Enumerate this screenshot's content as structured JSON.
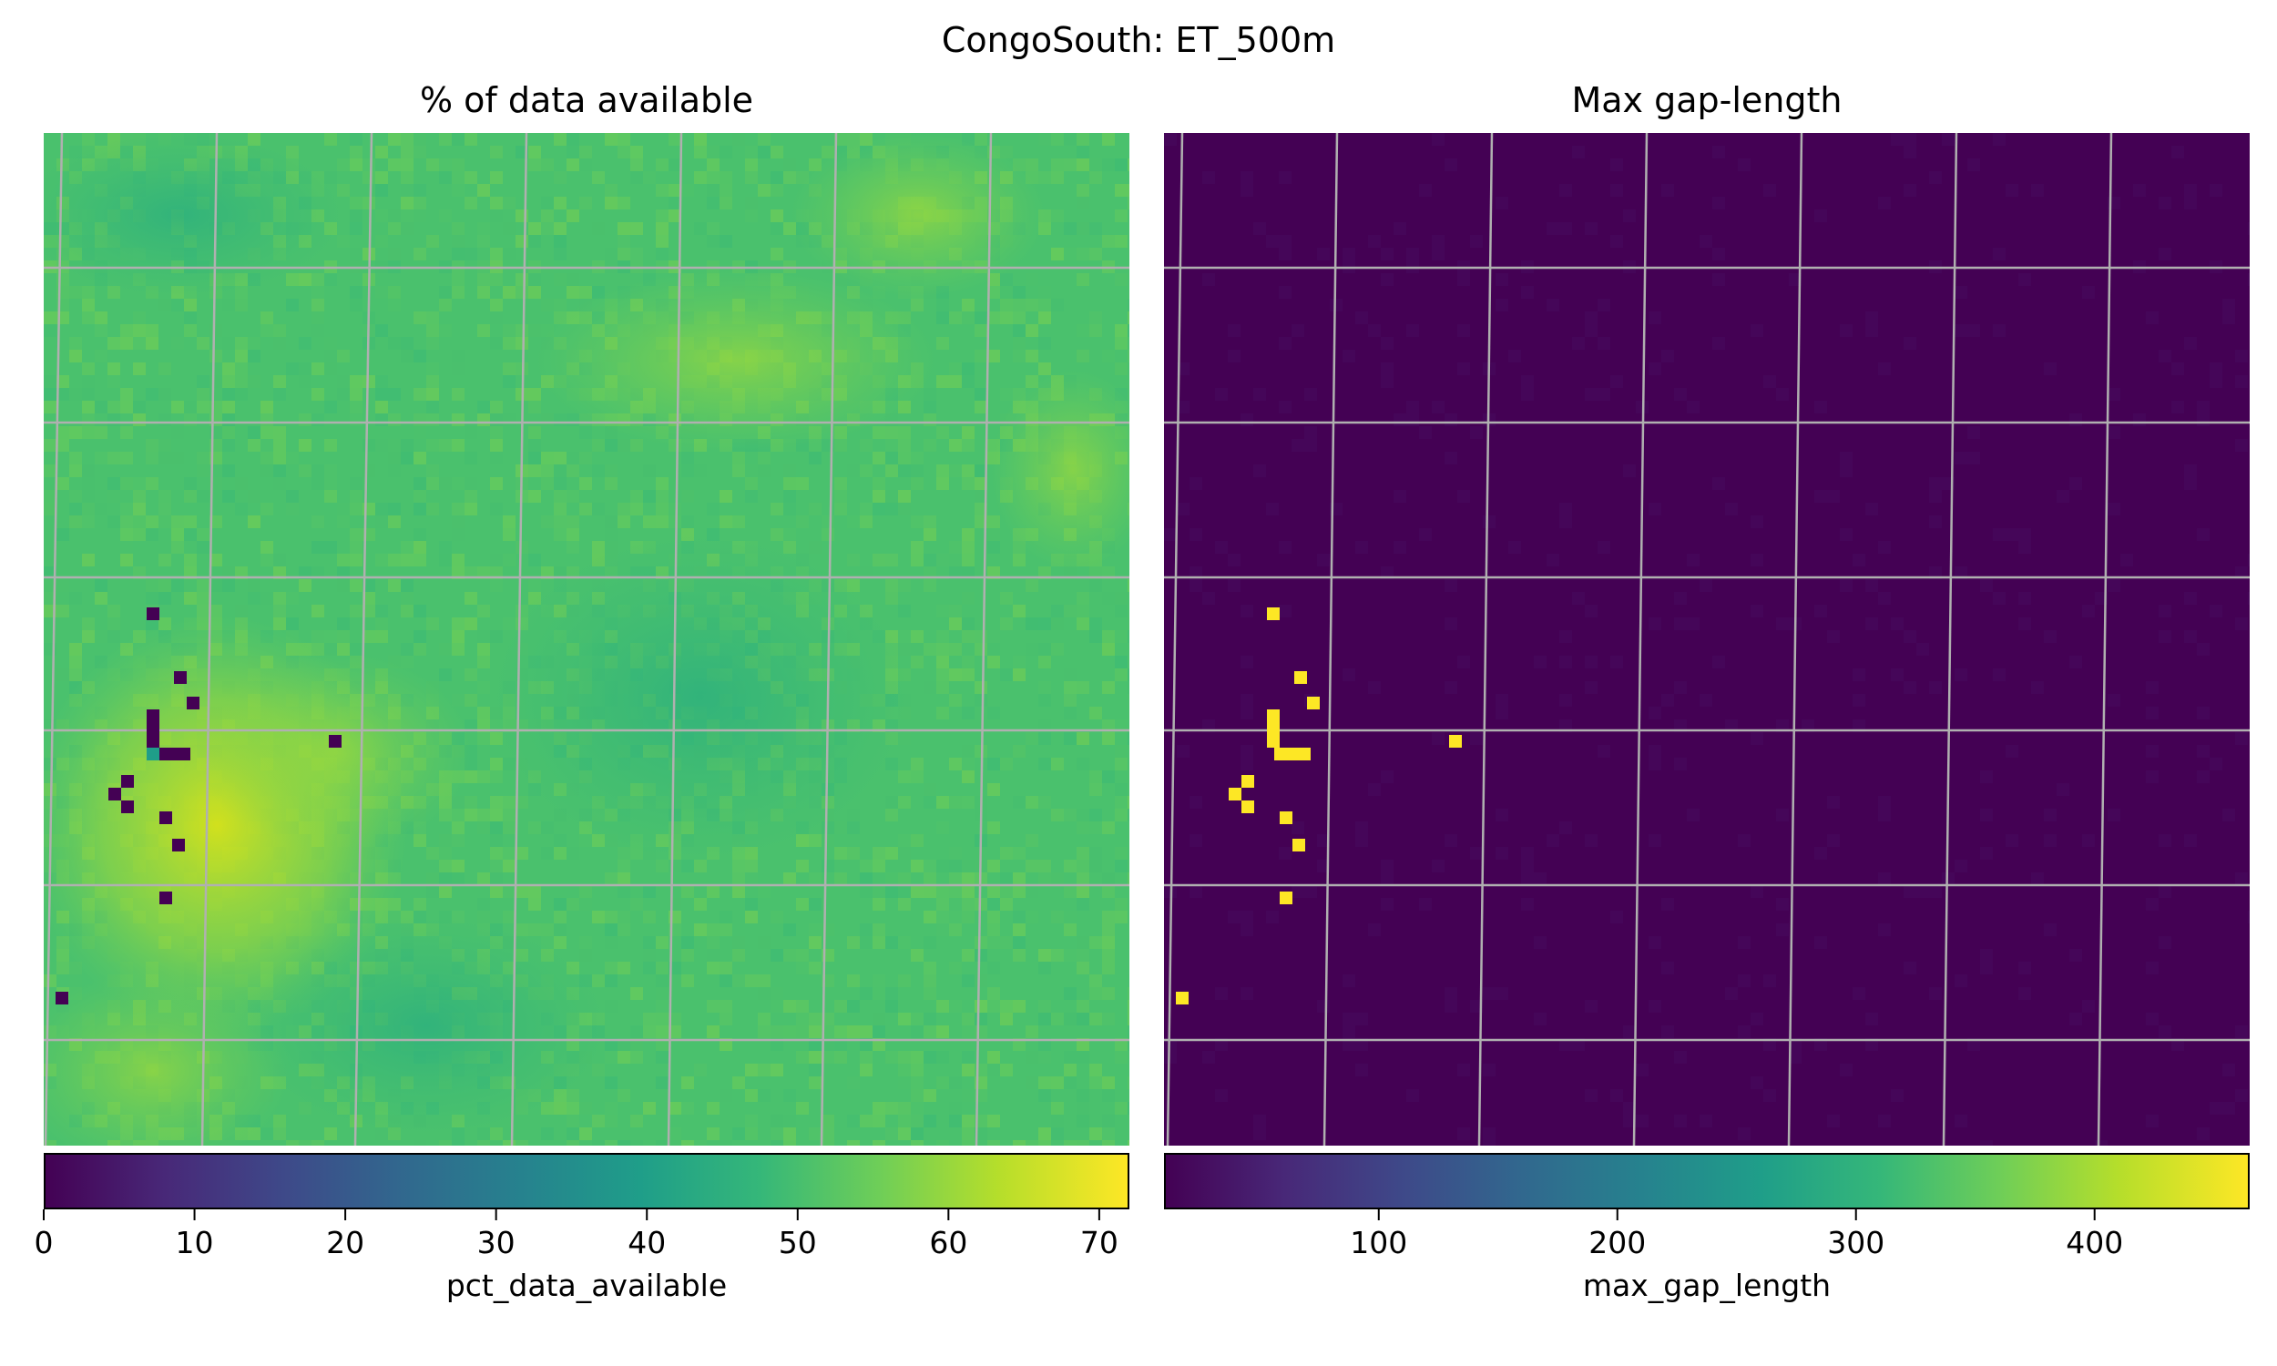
{
  "suptitle": "CongoSouth: ET_500m",
  "colors": {
    "grid": "#b0b0b0",
    "low": "#440154",
    "high": "#fde725"
  },
  "chart_data": [
    {
      "type": "heatmap",
      "title": "% of data available",
      "colorbar_label": "pct_data_available",
      "colormap": "viridis",
      "vmin": 0,
      "vmax": 72,
      "colorbar_ticks": [
        0,
        10,
        20,
        30,
        40,
        50,
        60,
        70
      ],
      "typical_value": 53,
      "bright_region_value": 64,
      "missing_pixel_value": 0
    },
    {
      "type": "heatmap",
      "title": "Max gap-length",
      "colorbar_label": "max_gap_length",
      "colormap": "viridis",
      "vmin": 10,
      "vmax": 465,
      "colorbar_ticks": [
        100,
        200,
        300,
        400
      ],
      "typical_value": 12,
      "missing_pixel_value": 465
    }
  ]
}
